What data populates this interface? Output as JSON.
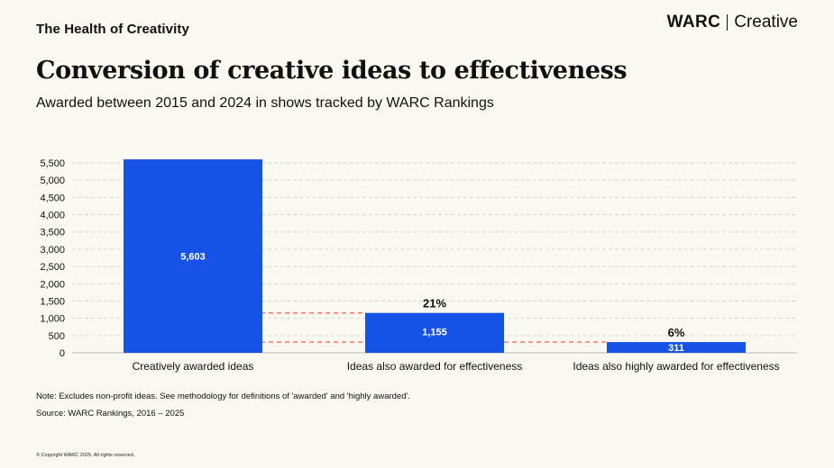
{
  "header": {
    "section_label": "The Health of Creativity",
    "brand_primary": "WARC",
    "brand_secondary": "Creative"
  },
  "title": "Conversion of creative ideas to effectiveness",
  "subtitle": "Awarded between 2015 and 2024 in shows tracked by WARC Rankings",
  "chart_data": {
    "type": "bar",
    "categories": [
      "Creatively awarded ideas",
      "Ideas also awarded for effectiveness",
      "Ideas also highly awarded for effectiveness"
    ],
    "values": [
      5603,
      1155,
      311
    ],
    "value_labels": [
      "5,603",
      "1,155",
      "311"
    ],
    "conversion_labels": [
      "",
      "21%",
      "6%"
    ],
    "ylim": [
      0,
      5500
    ],
    "yticks": [
      0,
      500,
      1000,
      1500,
      2000,
      2500,
      3000,
      3500,
      4000,
      4500,
      5000,
      5500
    ],
    "ytick_labels": [
      "0",
      "500",
      "1,000",
      "1,500",
      "2,000",
      "2,500",
      "3,000",
      "3,500",
      "4,000",
      "4,500",
      "5,000",
      "5,500"
    ],
    "grid": true,
    "bar_color": "#1652e6",
    "reference_line_color": "#f07a62"
  },
  "footer": {
    "note": "Note: Excludes non-profit ideas. See methodology for definitions of 'awarded' and 'highly awarded'.",
    "source": "Source: WARC Rankings, 2016 – 2025",
    "copyright": "© Copyright WARC 2025. All rights reserved."
  }
}
